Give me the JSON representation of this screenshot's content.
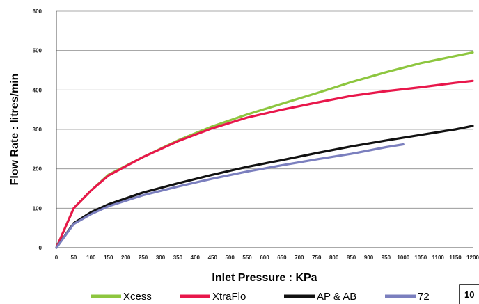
{
  "chart_data": {
    "type": "line",
    "title": "",
    "xlabel": "Inlet Pressure : KPa",
    "ylabel": "Flow  Rate : litres/min",
    "xlim": [
      0,
      1200
    ],
    "ylim": [
      0,
      600
    ],
    "x_ticks": [
      "0",
      "50",
      "100",
      "150",
      "200",
      "250",
      "300",
      "350",
      "400",
      "450",
      "500",
      "550",
      "600",
      "650",
      "700",
      "750",
      "800",
      "850",
      "900",
      "950",
      "1000",
      "1050",
      "1100",
      "1150",
      "1200"
    ],
    "y_ticks": [
      "0",
      "100",
      "200",
      "300",
      "400",
      "500",
      "600"
    ],
    "grid": "horizontal",
    "legend_position": "bottom",
    "series": [
      {
        "name": "Xcess",
        "color": "#8dc63f",
        "x": [
          0,
          50,
          100,
          150,
          250,
          350,
          450,
          550,
          650,
          750,
          850,
          950,
          1050,
          1150,
          1200
        ],
        "y": [
          0,
          100,
          145,
          185,
          230,
          272,
          308,
          338,
          365,
          392,
          420,
          445,
          468,
          486,
          495
        ]
      },
      {
        "name": "XtraFlo",
        "color": "#e8174b",
        "x": [
          0,
          50,
          100,
          150,
          250,
          350,
          450,
          550,
          650,
          750,
          850,
          950,
          1050,
          1150,
          1200
        ],
        "y": [
          0,
          100,
          145,
          183,
          230,
          270,
          303,
          330,
          350,
          368,
          385,
          397,
          407,
          418,
          423
        ]
      },
      {
        "name": "AP & AB",
        "color": "#111111",
        "x": [
          0,
          50,
          100,
          150,
          250,
          350,
          450,
          550,
          650,
          750,
          850,
          950,
          1050,
          1150,
          1200
        ],
        "y": [
          0,
          62,
          90,
          110,
          140,
          163,
          185,
          205,
          222,
          240,
          257,
          272,
          286,
          300,
          309
        ]
      },
      {
        "name": "72",
        "color": "#7b7fbe",
        "x": [
          0,
          50,
          100,
          150,
          250,
          350,
          450,
          550,
          650,
          750,
          850,
          950,
          1000
        ],
        "y": [
          0,
          60,
          85,
          105,
          133,
          155,
          175,
          193,
          209,
          224,
          238,
          255,
          262
        ]
      }
    ]
  },
  "corner_label": "10"
}
